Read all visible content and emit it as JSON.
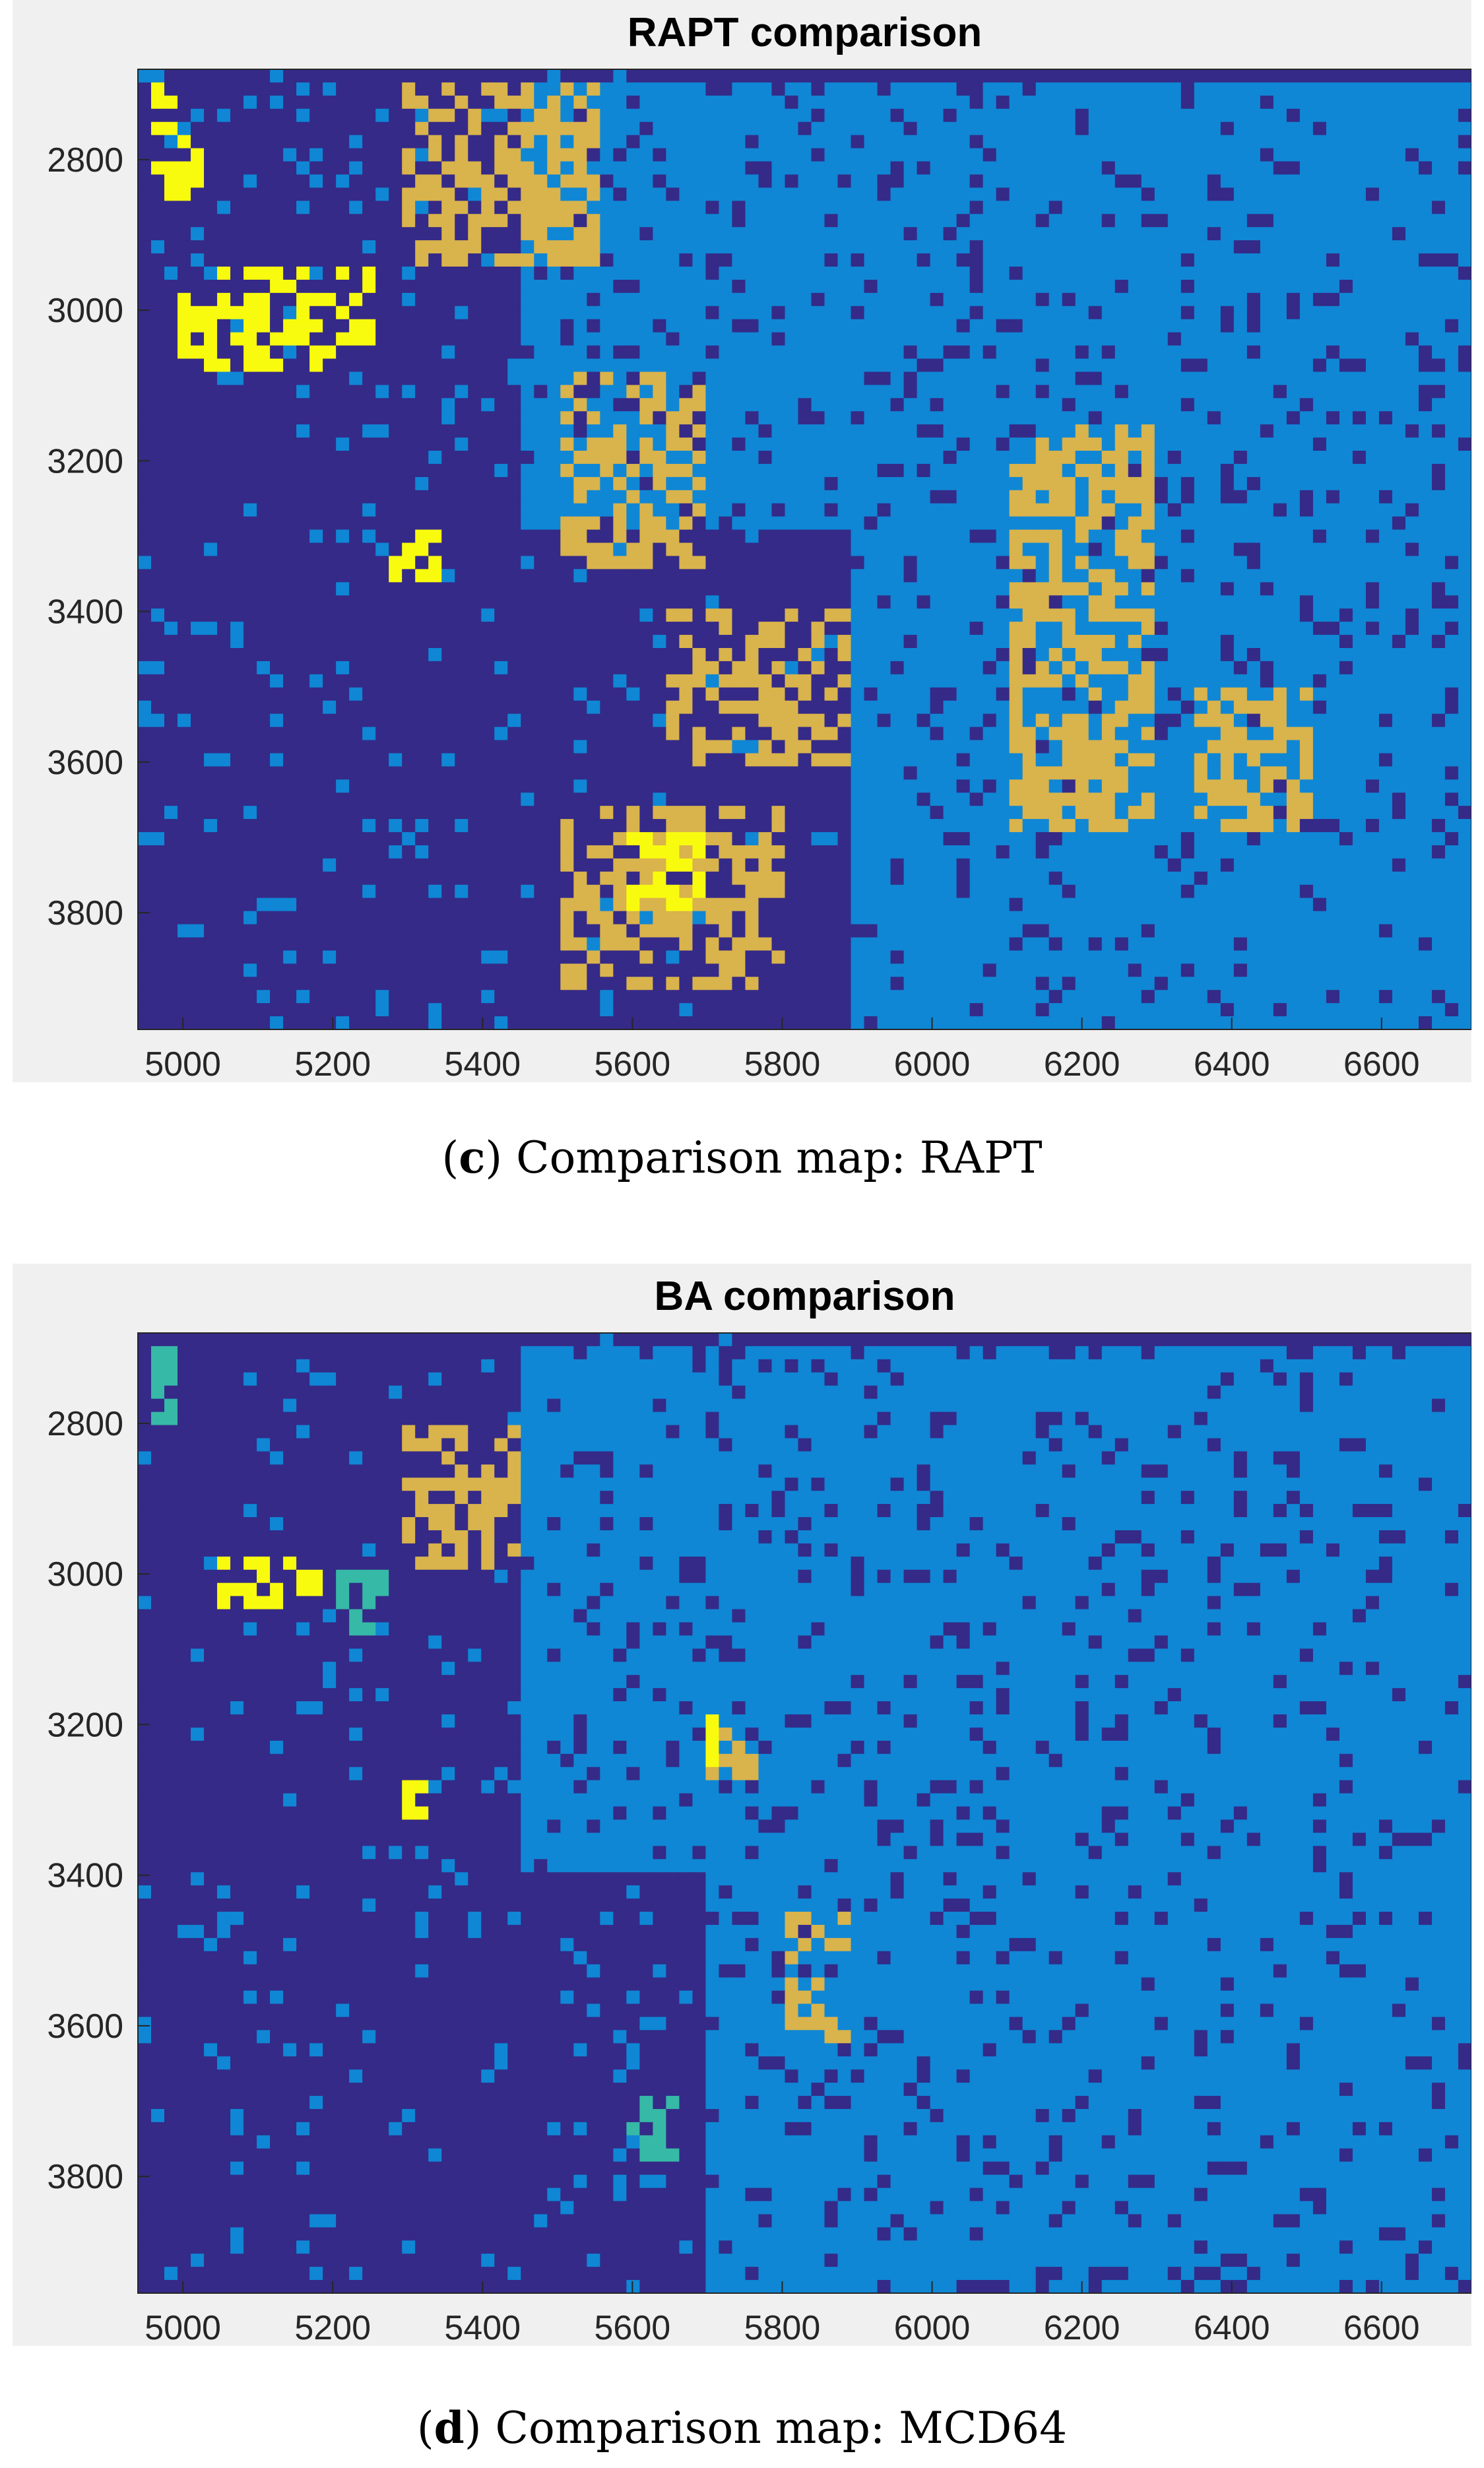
{
  "chart_data": [
    {
      "type": "heatmap",
      "title": "RAPT comparison",
      "caption_letter": "c",
      "caption_text": "Comparison map: RAPT",
      "xlim": [
        4940,
        6720
      ],
      "ylim": [
        2680,
        3955
      ],
      "y_reversed": true,
      "x_ticks": [
        "5000",
        "5200",
        "5400",
        "5600",
        "5800",
        "6000",
        "6200",
        "6400",
        "6600"
      ],
      "y_ticks": [
        "2800",
        "3000",
        "3200",
        "3400",
        "3600",
        "3800"
      ],
      "x_tick_values": [
        5000,
        5200,
        5400,
        5600,
        5800,
        6000,
        6200,
        6400,
        6600
      ],
      "y_tick_values": [
        2800,
        3000,
        3200,
        3400,
        3600,
        3800
      ],
      "grid": false,
      "colormap": [
        "#352a87",
        "#0f87d5",
        "#36b9a6",
        "#d9b34c",
        "#f9fb0e"
      ],
      "notes_class_features": {
        "yellow_regions": [
          [
            4950,
            2690,
            5020,
            2860
          ],
          [
            5000,
            2950,
            5260,
            3080
          ],
          [
            5280,
            3300,
            5340,
            3360
          ],
          [
            5600,
            3700,
            5700,
            3800
          ]
        ],
        "tan_regions": [
          [
            5300,
            2700,
            5550,
            2950
          ],
          [
            5500,
            3080,
            5700,
            3350
          ],
          [
            5650,
            3400,
            5900,
            3600
          ],
          [
            5500,
            3650,
            5800,
            3900
          ],
          [
            6100,
            3150,
            6300,
            3700
          ],
          [
            6350,
            3500,
            6500,
            3700
          ]
        ],
        "lightblue_regions": [
          [
            5450,
            2700,
            6720,
            3300
          ],
          [
            5900,
            3300,
            6720,
            3950
          ]
        ]
      }
    },
    {
      "type": "heatmap",
      "title": "BA comparison",
      "caption_letter": "d",
      "caption_text": "Comparison map: MCD64",
      "xlim": [
        4940,
        6720
      ],
      "ylim": [
        2680,
        3955
      ],
      "y_reversed": true,
      "x_ticks": [
        "5000",
        "5200",
        "5400",
        "5600",
        "5800",
        "6000",
        "6200",
        "6400",
        "6600"
      ],
      "y_ticks": [
        "2800",
        "3000",
        "3200",
        "3400",
        "3600",
        "3800"
      ],
      "x_tick_values": [
        5000,
        5200,
        5400,
        5600,
        5800,
        6000,
        6200,
        6400,
        6600
      ],
      "y_tick_values": [
        2800,
        3000,
        3200,
        3400,
        3600,
        3800
      ],
      "grid": false,
      "colormap": [
        "#352a87",
        "#0f87d5",
        "#36b9a6",
        "#d9b34c",
        "#f9fb0e"
      ],
      "notes_class_features": {
        "yellow_regions": [
          [
            5050,
            2980,
            5180,
            3040
          ],
          [
            5300,
            3280,
            5340,
            3330
          ],
          [
            5690,
            3180,
            5720,
            3250
          ]
        ],
        "teal_regions": [
          [
            4950,
            2690,
            5000,
            2800
          ],
          [
            5200,
            3000,
            5280,
            3080
          ],
          [
            5600,
            3700,
            5660,
            3780
          ]
        ],
        "tan_regions": [
          [
            5300,
            2800,
            5450,
            3000
          ],
          [
            5800,
            3450,
            5900,
            3620
          ],
          [
            5700,
            3200,
            5760,
            3300
          ]
        ],
        "lightblue_regions": [
          [
            5450,
            2700,
            6720,
            3400
          ],
          [
            5700,
            3400,
            6720,
            3950
          ]
        ]
      }
    }
  ]
}
